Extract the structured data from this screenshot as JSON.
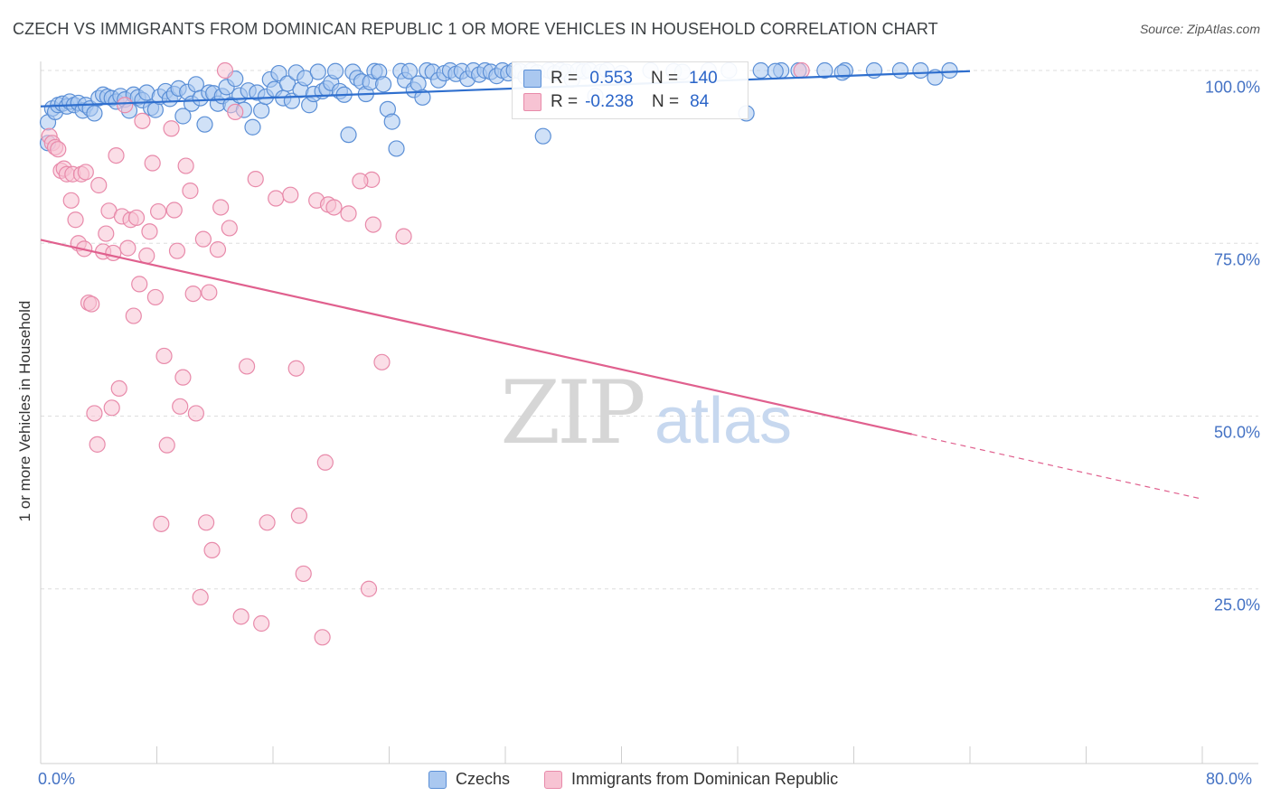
{
  "title": "CZECH VS IMMIGRANTS FROM DOMINICAN REPUBLIC 1 OR MORE VEHICLES IN HOUSEHOLD CORRELATION CHART",
  "source": "Source: ZipAtlas.com",
  "watermark": {
    "zip": "ZIP",
    "atlas": "atlas"
  },
  "colors": {
    "czech_fill": "#aac8f0",
    "czech_stroke": "#5b8fd6",
    "czech_line": "#2f6fce",
    "dom_fill": "#f7c3d3",
    "dom_stroke": "#e88aaa",
    "dom_line": "#e0608e",
    "tick_text": "#4472c4",
    "grid": "#dddddd"
  },
  "stats": [
    {
      "r_label": "R =",
      "r_value": " 0.553",
      "n_label": "N =",
      "n_value": "140"
    },
    {
      "r_label": "R =",
      "r_value": "-0.238",
      "n_label": "N =",
      "n_value": "84"
    }
  ],
  "legend": [
    "Czechs",
    "Immigrants from Dominican Republic"
  ],
  "chart_data": {
    "type": "scatter",
    "xlabel": "",
    "ylabel": "1 or more Vehicles in Household",
    "xlim": [
      0,
      80
    ],
    "ylim": [
      0,
      100
    ],
    "x_tick_labels": [
      "0.0%",
      "80.0%"
    ],
    "y_ticks": [
      25,
      50,
      75,
      100
    ],
    "y_tick_labels": [
      "25.0%",
      "50.0%",
      "75.0%",
      "100.0%"
    ],
    "series": [
      {
        "name": "Czechs",
        "trend": {
          "x": [
            0,
            64
          ],
          "y": [
            94.8,
            99.9
          ],
          "dashed_from": null
        },
        "points": [
          [
            0.5,
            92.5
          ],
          [
            0.5,
            89.5
          ],
          [
            0.8,
            94.5
          ],
          [
            1.0,
            94.0
          ],
          [
            1.2,
            95.0
          ],
          [
            1.5,
            95.2
          ],
          [
            1.8,
            94.8
          ],
          [
            2.0,
            95.5
          ],
          [
            2.3,
            95.0
          ],
          [
            2.6,
            95.3
          ],
          [
            2.9,
            94.2
          ],
          [
            3.1,
            95.0
          ],
          [
            3.4,
            94.5
          ],
          [
            3.7,
            93.8
          ],
          [
            4.0,
            96.0
          ],
          [
            4.3,
            96.5
          ],
          [
            4.6,
            96.2
          ],
          [
            4.9,
            96.0
          ],
          [
            5.2,
            95.5
          ],
          [
            5.5,
            96.3
          ],
          [
            5.8,
            95.8
          ],
          [
            6.1,
            94.2
          ],
          [
            6.4,
            96.5
          ],
          [
            6.7,
            96.1
          ],
          [
            7.0,
            95.7
          ],
          [
            7.3,
            96.8
          ],
          [
            7.6,
            94.6
          ],
          [
            7.9,
            94.3
          ],
          [
            8.2,
            96.2
          ],
          [
            8.6,
            97.0
          ],
          [
            8.9,
            95.9
          ],
          [
            9.2,
            96.6
          ],
          [
            9.5,
            97.4
          ],
          [
            9.8,
            93.4
          ],
          [
            10.1,
            96.9
          ],
          [
            10.4,
            95.2
          ],
          [
            10.7,
            98.0
          ],
          [
            11.0,
            96.0
          ],
          [
            11.3,
            92.2
          ],
          [
            11.6,
            96.8
          ],
          [
            11.9,
            96.7
          ],
          [
            12.2,
            95.2
          ],
          [
            12.5,
            96.3
          ],
          [
            12.8,
            97.6
          ],
          [
            13.1,
            95.0
          ],
          [
            13.4,
            98.8
          ],
          [
            13.7,
            96.4
          ],
          [
            14.0,
            94.3
          ],
          [
            14.3,
            97.1
          ],
          [
            14.6,
            91.8
          ],
          [
            14.9,
            96.8
          ],
          [
            15.2,
            94.2
          ],
          [
            15.5,
            96.2
          ],
          [
            15.8,
            98.7
          ],
          [
            16.1,
            97.3
          ],
          [
            16.4,
            99.6
          ],
          [
            16.7,
            96.0
          ],
          [
            17.0,
            98.1
          ],
          [
            17.3,
            95.6
          ],
          [
            17.6,
            99.7
          ],
          [
            17.9,
            97.2
          ],
          [
            18.2,
            98.9
          ],
          [
            18.5,
            95.0
          ],
          [
            18.8,
            96.6
          ],
          [
            19.1,
            99.8
          ],
          [
            19.4,
            97.0
          ],
          [
            19.7,
            97.4
          ],
          [
            20.0,
            98.2
          ],
          [
            20.3,
            99.9
          ],
          [
            20.6,
            97.0
          ],
          [
            20.9,
            96.5
          ],
          [
            21.2,
            90.7
          ],
          [
            21.5,
            99.8
          ],
          [
            21.8,
            98.9
          ],
          [
            22.1,
            98.4
          ],
          [
            22.4,
            96.6
          ],
          [
            22.7,
            98.3
          ],
          [
            23.0,
            99.9
          ],
          [
            23.3,
            99.8
          ],
          [
            23.6,
            98.0
          ],
          [
            23.9,
            94.4
          ],
          [
            24.2,
            92.6
          ],
          [
            24.5,
            88.7
          ],
          [
            24.8,
            99.9
          ],
          [
            25.1,
            98.6
          ],
          [
            25.4,
            99.9
          ],
          [
            25.7,
            97.2
          ],
          [
            26.0,
            98.1
          ],
          [
            26.3,
            96.1
          ],
          [
            26.6,
            100.0
          ],
          [
            27.0,
            99.8
          ],
          [
            27.4,
            98.6
          ],
          [
            27.8,
            99.6
          ],
          [
            28.2,
            100.0
          ],
          [
            28.6,
            99.5
          ],
          [
            29.0,
            99.9
          ],
          [
            29.4,
            98.8
          ],
          [
            29.8,
            100.0
          ],
          [
            30.2,
            99.4
          ],
          [
            30.6,
            100.0
          ],
          [
            31.0,
            99.8
          ],
          [
            31.4,
            99.2
          ],
          [
            31.8,
            100.0
          ],
          [
            32.2,
            99.6
          ],
          [
            32.6,
            100.0
          ],
          [
            33.0,
            99.9
          ],
          [
            33.4,
            99.1
          ],
          [
            33.8,
            100.0
          ],
          [
            34.2,
            99.7
          ],
          [
            34.6,
            90.5
          ],
          [
            35.0,
            100.0
          ],
          [
            35.4,
            99.6
          ],
          [
            35.8,
            100.0
          ],
          [
            36.2,
            99.8
          ],
          [
            36.6,
            98.7
          ],
          [
            37.0,
            100.0
          ],
          [
            37.4,
            99.9
          ],
          [
            37.8,
            100.0
          ],
          [
            38.2,
            96.3
          ],
          [
            38.6,
            99.8
          ],
          [
            39.0,
            100.0
          ],
          [
            40.0,
            99.6
          ],
          [
            42.0,
            100.0
          ],
          [
            43.6,
            99.9
          ],
          [
            44.2,
            99.8
          ],
          [
            46.0,
            100.0
          ],
          [
            47.4,
            100.0
          ],
          [
            48.6,
            93.8
          ],
          [
            49.6,
            100.0
          ],
          [
            51.0,
            100.0
          ],
          [
            52.2,
            100.0
          ],
          [
            54.0,
            100.0
          ],
          [
            55.4,
            100.0
          ],
          [
            57.4,
            100.0
          ],
          [
            59.2,
            100.0
          ],
          [
            60.6,
            100.0
          ],
          [
            61.6,
            99.0
          ],
          [
            62.6,
            100.0
          ],
          [
            55.2,
            99.7
          ],
          [
            50.6,
            99.9
          ]
        ]
      },
      {
        "name": "Immigrants from Dominican Republic",
        "trend": {
          "x": [
            0,
            80
          ],
          "y": [
            75.5,
            38.0
          ],
          "dashed_from": 60.0
        },
        "points": [
          [
            0.6,
            90.5
          ],
          [
            0.8,
            89.5
          ],
          [
            1.0,
            88.9
          ],
          [
            1.2,
            88.6
          ],
          [
            1.4,
            85.5
          ],
          [
            1.6,
            85.8
          ],
          [
            1.8,
            85.0
          ],
          [
            2.1,
            81.2
          ],
          [
            2.2,
            85.0
          ],
          [
            2.4,
            78.4
          ],
          [
            2.6,
            75.0
          ],
          [
            2.8,
            85.0
          ],
          [
            3.0,
            74.2
          ],
          [
            3.1,
            85.3
          ],
          [
            3.3,
            66.4
          ],
          [
            3.5,
            66.2
          ],
          [
            3.7,
            50.4
          ],
          [
            3.9,
            45.9
          ],
          [
            4.0,
            83.4
          ],
          [
            4.3,
            73.8
          ],
          [
            4.5,
            76.4
          ],
          [
            4.7,
            79.7
          ],
          [
            4.9,
            51.2
          ],
          [
            5.0,
            73.6
          ],
          [
            5.2,
            87.7
          ],
          [
            5.4,
            54.0
          ],
          [
            5.6,
            78.9
          ],
          [
            5.8,
            95.0
          ],
          [
            6.0,
            74.3
          ],
          [
            6.2,
            78.4
          ],
          [
            6.4,
            64.5
          ],
          [
            6.6,
            78.7
          ],
          [
            6.8,
            69.1
          ],
          [
            7.0,
            92.7
          ],
          [
            7.3,
            73.2
          ],
          [
            7.5,
            76.7
          ],
          [
            7.7,
            86.6
          ],
          [
            7.9,
            67.2
          ],
          [
            8.1,
            79.6
          ],
          [
            8.3,
            34.4
          ],
          [
            8.5,
            58.7
          ],
          [
            8.7,
            45.8
          ],
          [
            9.0,
            91.6
          ],
          [
            9.2,
            79.8
          ],
          [
            9.4,
            73.9
          ],
          [
            9.6,
            51.4
          ],
          [
            9.8,
            55.6
          ],
          [
            10.0,
            86.2
          ],
          [
            10.3,
            82.6
          ],
          [
            10.5,
            67.7
          ],
          [
            10.7,
            50.4
          ],
          [
            11.0,
            23.8
          ],
          [
            11.2,
            75.6
          ],
          [
            11.4,
            34.6
          ],
          [
            11.6,
            67.9
          ],
          [
            11.8,
            30.6
          ],
          [
            12.2,
            74.1
          ],
          [
            12.4,
            80.2
          ],
          [
            12.7,
            100.0
          ],
          [
            13.0,
            77.2
          ],
          [
            13.4,
            94.0
          ],
          [
            13.8,
            21.0
          ],
          [
            14.2,
            57.2
          ],
          [
            14.8,
            84.3
          ],
          [
            15.2,
            20.0
          ],
          [
            15.6,
            34.6
          ],
          [
            16.2,
            81.5
          ],
          [
            17.2,
            82.0
          ],
          [
            17.6,
            56.9
          ],
          [
            17.8,
            35.6
          ],
          [
            18.1,
            27.2
          ],
          [
            19.0,
            81.2
          ],
          [
            19.4,
            18.0
          ],
          [
            19.6,
            43.3
          ],
          [
            19.8,
            80.6
          ],
          [
            20.2,
            80.2
          ],
          [
            21.2,
            79.3
          ],
          [
            22.6,
            25.0
          ],
          [
            22.8,
            84.2
          ],
          [
            22.9,
            77.7
          ],
          [
            23.5,
            57.8
          ],
          [
            25.0,
            76.0
          ],
          [
            52.4,
            100.0
          ],
          [
            22.0,
            84.0
          ]
        ]
      }
    ]
  }
}
